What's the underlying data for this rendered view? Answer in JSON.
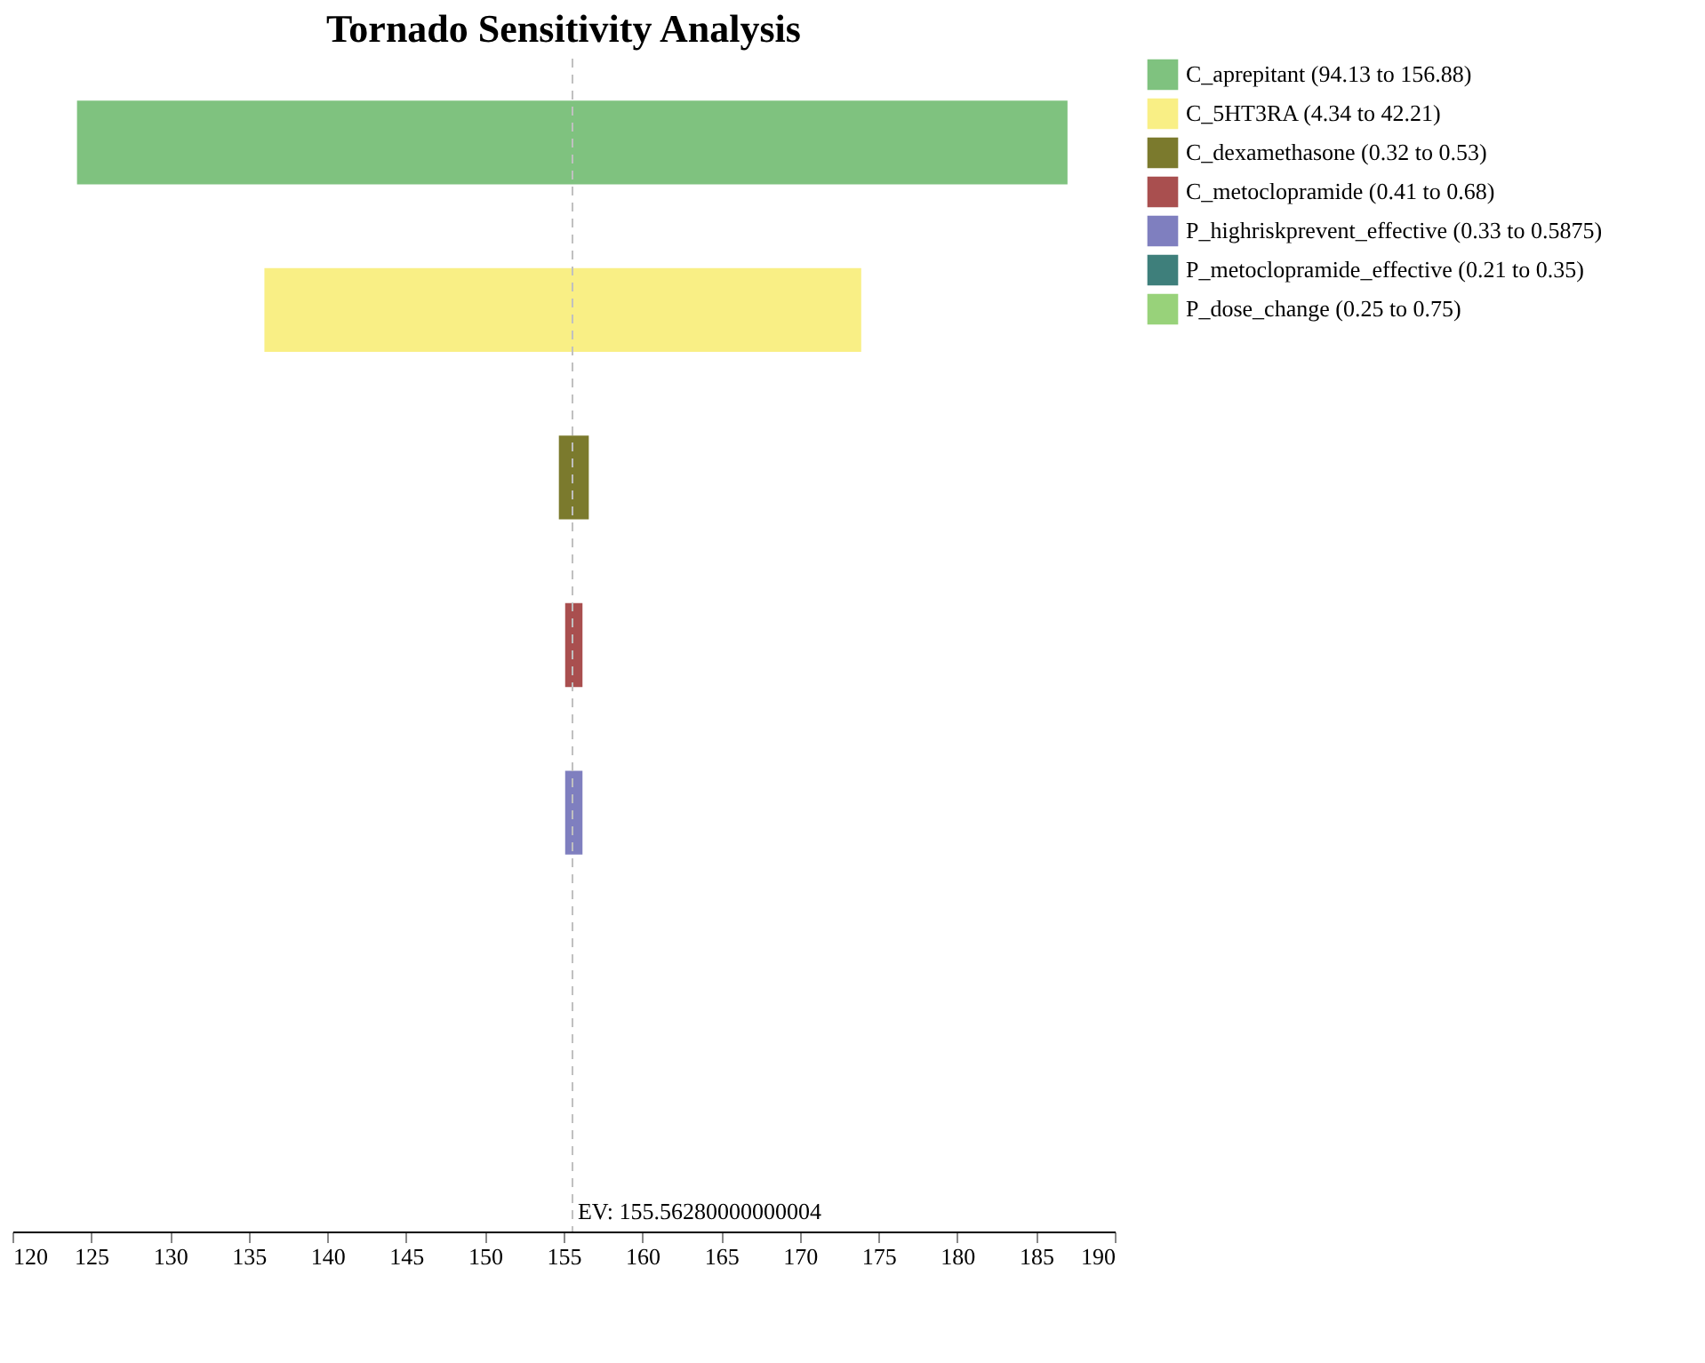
{
  "chart_data": {
    "type": "bar",
    "title": "Tornado Sensitivity Analysis",
    "orientation": "horizontal",
    "categories": [
      null,
      null,
      null,
      null,
      null,
      null,
      null
    ],
    "series": [
      {
        "name": "C_aprepitant (94.13 to 156.88)",
        "color": "#7fc27f",
        "values": [
          62.9,
          null,
          null,
          null,
          null,
          null,
          null
        ],
        "base": [
          124.1,
          null,
          null,
          null,
          null,
          null,
          null
        ]
      },
      {
        "name": "C_5HT3RA (4.34 to 42.21)",
        "color": "#f9ef85",
        "values": [
          null,
          37.9,
          null,
          null,
          null,
          null,
          null
        ],
        "base": [
          null,
          136.0,
          null,
          null,
          null,
          null,
          null
        ]
      },
      {
        "name": "C_dexamethasone (0.32 to 0.53)",
        "color": "#7b7a2d",
        "values": [
          null,
          null,
          1.9,
          null,
          null,
          null,
          null
        ],
        "base": [
          null,
          null,
          154.7,
          null,
          null,
          null,
          null
        ]
      },
      {
        "name": "C_metoclopramide (0.41 to 0.68)",
        "color": "#a94f4f",
        "values": [
          null,
          null,
          null,
          1.1,
          null,
          null,
          null
        ],
        "base": [
          null,
          null,
          null,
          155.1,
          null,
          null,
          null
        ]
      },
      {
        "name": "P_highriskprevent_effective (0.33 to 0.5875)",
        "color": "#7f7fbf",
        "values": [
          null,
          null,
          null,
          null,
          1.1,
          null,
          null
        ],
        "base": [
          null,
          null,
          null,
          null,
          155.1,
          null,
          null
        ]
      },
      {
        "name": "P_metoclopramide_effective (0.21 to 0.35)",
        "color": "#3e7f7b",
        "values": [
          null,
          null,
          null,
          null,
          null,
          null,
          null
        ],
        "base": [
          null,
          null,
          null,
          null,
          null,
          null,
          null
        ]
      },
      {
        "name": "P_dose_change (0.25 to 0.75)",
        "color": "#98d27a",
        "values": [
          null,
          null,
          null,
          null,
          null,
          null,
          null
        ],
        "base": [
          null,
          null,
          null,
          null,
          null,
          null,
          null
        ]
      }
    ],
    "xlim": [
      120,
      190
    ],
    "xticks": [
      120,
      125,
      130,
      135,
      140,
      145,
      150,
      155,
      160,
      165,
      170,
      175,
      180,
      185,
      190
    ],
    "ref_lines": [
      {
        "axis": "x",
        "value": 155.56280000000004,
        "label": "EV: 155.56280000000004",
        "color": "#c0c0c0",
        "line_style": "dashed"
      }
    ],
    "grid": false,
    "legend": "right"
  }
}
